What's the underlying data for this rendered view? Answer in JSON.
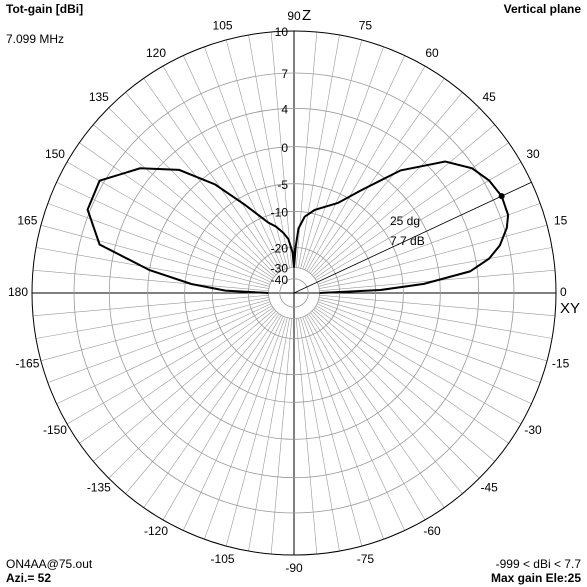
{
  "chart_data": {
    "type": "polar",
    "title": "Vertical plane",
    "r_axis_label": "Tot-gain [dBi]",
    "subtitle": "7.099 MHz",
    "axis_top_label": "Z",
    "axis_right_label": "XY",
    "annotations": [
      "25 dg",
      "7.7 dB"
    ],
    "footer_left": [
      "ON4AA@75.out",
      "Azi.= 52"
    ],
    "footer_right": [
      "-999 < dBi < 7.7",
      "Max gain Ele:25"
    ],
    "scale": "arrl-log",
    "rlim": [
      -40,
      10
    ],
    "rticks": [
      10,
      7,
      4,
      0,
      -5,
      -10,
      -20,
      -30,
      -40
    ],
    "angle_ticks": [
      0,
      15,
      30,
      45,
      60,
      75,
      90,
      105,
      120,
      135,
      150,
      165,
      180,
      -165,
      -150,
      -135,
      -120,
      -105,
      -90,
      -75,
      -60,
      -45,
      -30,
      -15
    ],
    "max_marker_index": 8,
    "series": [
      {
        "name": "Tot-gain",
        "color": "#000000",
        "x": [
          0,
          2,
          4,
          7,
          10,
          13,
          17,
          20,
          25,
          30,
          35,
          41,
          49,
          57,
          64,
          70,
          76,
          82,
          86,
          88,
          90,
          92,
          96,
          100,
          105,
          110,
          119,
          126,
          133,
          141,
          150,
          158,
          166,
          171,
          175,
          178,
          180
        ],
        "values": [
          -30,
          -9,
          -2,
          3.3,
          5.2,
          6.3,
          7.2,
          7.6,
          7.7,
          7.4,
          6.8,
          5.4,
          1.8,
          -3.1,
          -6.5,
          -8,
          -9.2,
          -11,
          -14,
          -20,
          -30,
          -22,
          -17,
          -15,
          -13,
          -11.5,
          -6.4,
          -1.5,
          2.4,
          5.2,
          7.35,
          7.2,
          5.4,
          0,
          -6,
          -13,
          -30
        ]
      }
    ]
  }
}
